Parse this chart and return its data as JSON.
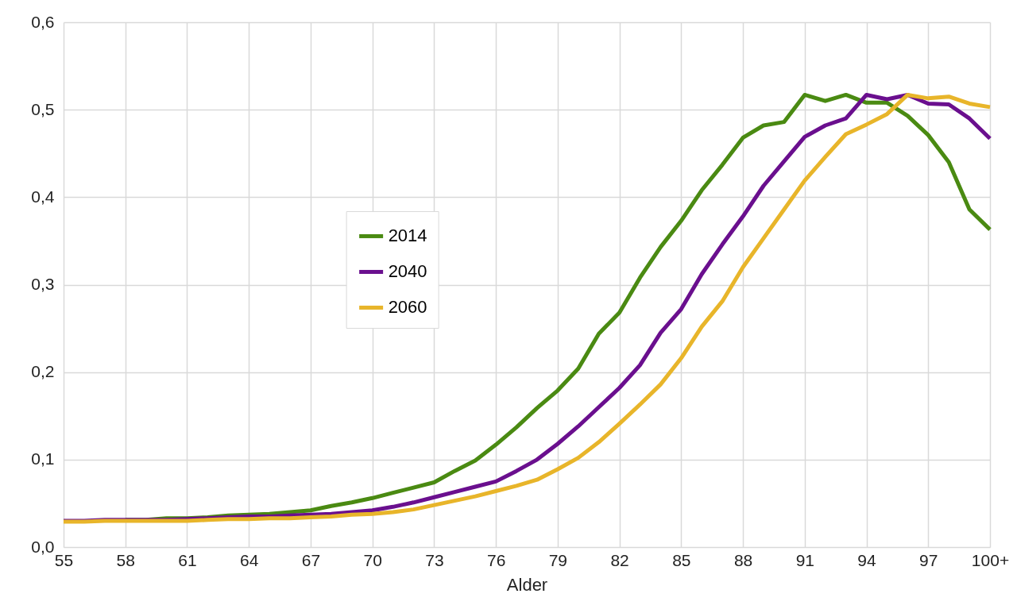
{
  "chart_data": {
    "type": "line",
    "xlabel": "Alder",
    "categories": [
      "55",
      null,
      null,
      "58",
      null,
      null,
      "61",
      null,
      null,
      "64",
      null,
      null,
      "67",
      null,
      null,
      "70",
      null,
      null,
      "73",
      null,
      null,
      "76",
      null,
      null,
      "79",
      null,
      null,
      "82",
      null,
      null,
      "85",
      null,
      null,
      "88",
      null,
      null,
      "91",
      null,
      null,
      "94",
      null,
      null,
      "97",
      null,
      null,
      "100+"
    ],
    "series": [
      {
        "name": "2014",
        "color": "#4a8a12",
        "values": [
          null,
          null,
          null,
          0.031,
          0.031,
          0.033,
          0.033,
          0.034,
          0.036,
          0.037,
          0.038,
          0.04,
          0.042,
          0.047,
          0.051,
          0.056,
          0.062,
          0.068,
          0.074,
          0.087,
          0.099,
          0.117,
          0.137,
          0.159,
          0.179,
          0.204,
          0.244,
          0.268,
          0.308,
          0.343,
          0.373,
          0.408,
          0.437,
          0.468,
          0.482,
          0.486,
          0.517,
          0.51,
          0.517,
          0.508,
          0.508,
          0.493,
          0.471,
          0.44,
          0.386,
          0.363
        ]
      },
      {
        "name": "2040",
        "color": "#6a0f8e",
        "values": [
          0.03,
          0.03,
          0.031,
          0.031,
          0.031,
          0.031,
          0.032,
          0.033,
          0.034,
          0.035,
          0.035,
          0.036,
          0.037,
          0.038,
          0.04,
          0.042,
          0.046,
          0.051,
          0.057,
          0.063,
          0.069,
          0.075,
          0.087,
          0.1,
          0.118,
          0.138,
          0.16,
          0.182,
          0.208,
          0.245,
          0.272,
          0.312,
          0.346,
          0.378,
          0.413,
          0.441,
          0.469,
          0.482,
          0.49,
          0.517,
          0.512,
          0.517,
          0.507,
          0.506,
          0.49,
          0.467
        ]
      },
      {
        "name": "2060",
        "color": "#e8b52a",
        "values": [
          0.029,
          0.029,
          0.03,
          0.03,
          0.03,
          0.03,
          0.03,
          0.031,
          0.032,
          0.032,
          0.033,
          0.033,
          0.034,
          0.035,
          0.037,
          0.038,
          0.04,
          0.043,
          0.048,
          0.053,
          0.058,
          0.064,
          0.07,
          0.077,
          0.089,
          0.102,
          0.12,
          0.141,
          0.163,
          0.186,
          0.216,
          0.252,
          0.281,
          0.32,
          0.353,
          0.386,
          0.419,
          0.446,
          0.472,
          0.483,
          0.495,
          0.517,
          0.513,
          0.515,
          0.507,
          0.503
        ]
      }
    ],
    "ylim": [
      0,
      0.6
    ],
    "yticks": [
      {
        "value": 0,
        "label": "0,0"
      },
      {
        "value": 0.1,
        "label": "0,1"
      },
      {
        "value": 0.2,
        "label": "0,2"
      },
      {
        "value": 0.3,
        "label": "0,3"
      },
      {
        "value": 0.4,
        "label": "0,4"
      },
      {
        "value": 0.5,
        "label": "0,5"
      },
      {
        "value": 0.6,
        "label": "0,6"
      }
    ],
    "grid": true,
    "legend": "center",
    "marker": "none",
    "line_style": "solid"
  }
}
